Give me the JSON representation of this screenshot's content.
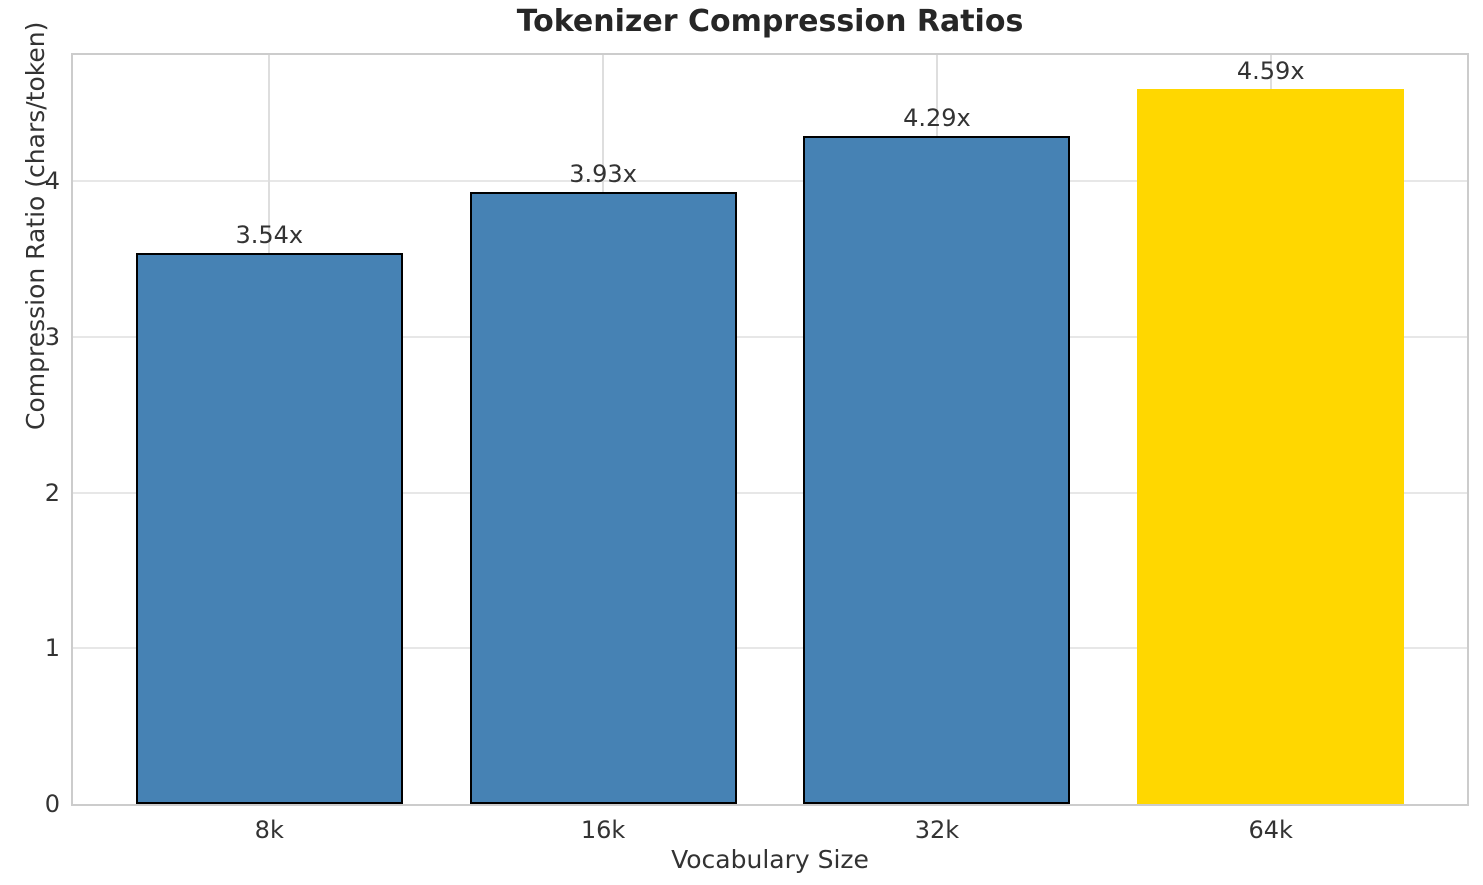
{
  "chart_data": {
    "type": "bar",
    "title": "Tokenizer Compression Ratios",
    "xlabel": "Vocabulary Size",
    "ylabel": "Compression Ratio (chars/token)",
    "categories": [
      "8k",
      "16k",
      "32k",
      "64k"
    ],
    "values": [
      3.54,
      3.93,
      4.29,
      4.59
    ],
    "bar_labels": [
      "3.54x",
      "3.93x",
      "4.29x",
      "4.59x"
    ],
    "bar_colors": [
      "#4682B4",
      "#4682B4",
      "#4682B4",
      "#FFD700"
    ],
    "bar_edge_colors": [
      "#000000",
      "#000000",
      "#000000",
      "#FFD700"
    ],
    "base_color": "#4682B4",
    "highlight_color": "#FFD700",
    "ylim": [
      0,
      4.81
    ],
    "yticks": [
      0,
      1,
      2,
      3,
      4
    ],
    "grid": true,
    "grid_axes": "both",
    "legend": "none"
  }
}
